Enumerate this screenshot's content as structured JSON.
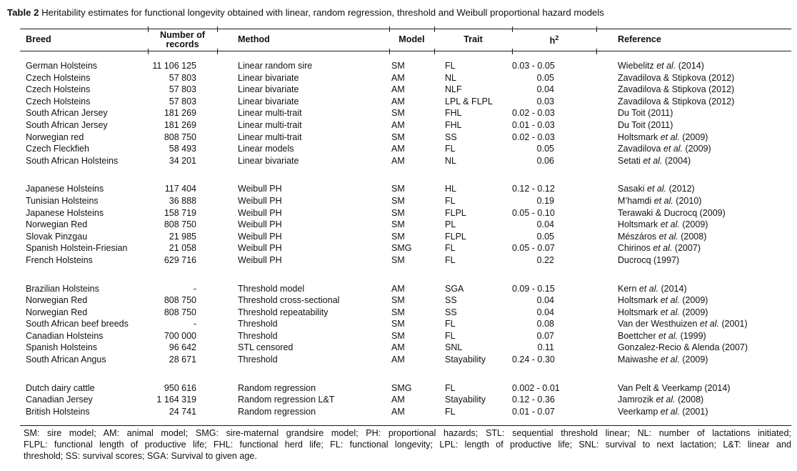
{
  "title": {
    "label": "Table 2",
    "text": " Heritability estimates for functional longevity obtained with linear, random regression, threshold and Weibull proportional hazard models"
  },
  "columns": {
    "breed": "Breed",
    "records": "Number of records",
    "method": "Method",
    "model": "Model",
    "trait": "Trait",
    "h2_base": "h",
    "h2_sup": "2",
    "reference": "Reference"
  },
  "groups": [
    {
      "name": "linear-models",
      "rows": [
        {
          "breed": "German Holsteins",
          "records": "11 106 125",
          "method": "Linear random sire",
          "model": "SM",
          "trait": "FL",
          "h2": "0.03 - 0.05",
          "reference": "Wiebelitz et al. (2014)"
        },
        {
          "breed": "Czech Holsteins",
          "records": "57 803",
          "method": "Linear bivariate",
          "model": "AM",
          "trait": "NL",
          "h2": "0.05",
          "reference": "Zavadilova & Stipkova (2012)"
        },
        {
          "breed": "Czech Holsteins",
          "records": "57 803",
          "method": "Linear bivariate",
          "model": "AM",
          "trait": "NLF",
          "h2": "0.04",
          "reference": "Zavadilova & Stipkova (2012)"
        },
        {
          "breed": "Czech Holsteins",
          "records": "57 803",
          "method": "Linear bivariate",
          "model": "AM",
          "trait": "LPL & FLPL",
          "h2": "0.03",
          "reference": "Zavadilova & Stipkova (2012)"
        },
        {
          "breed": "South African Jersey",
          "records": "181 269",
          "method": "Linear multi-trait",
          "model": "SM",
          "trait": "FHL",
          "h2": "0.02 - 0.03",
          "reference": "Du Toit (2011)"
        },
        {
          "breed": "South African Jersey",
          "records": "181 269",
          "method": "Linear multi-trait",
          "model": "AM",
          "trait": "FHL",
          "h2": "0.01 - 0.03",
          "reference": "Du Toit (2011)"
        },
        {
          "breed": "Norwegian red",
          "records": "808 750",
          "method": "Linear multi-trait",
          "model": "SM",
          "trait": "SS",
          "h2": "0.02 - 0.03",
          "reference": "Holtsmark et al. (2009)"
        },
        {
          "breed": "Czech Fleckfieh",
          "records": "58 493",
          "method": "Linear models",
          "model": "AM",
          "trait": "FL",
          "h2": "0.05",
          "reference": "Zavadilova et al. (2009)"
        },
        {
          "breed": "South African Holsteins",
          "records": "34 201",
          "method": "Linear bivariate",
          "model": "AM",
          "trait": "NL",
          "h2": "0.06",
          "reference": "Setati et al. (2004)"
        }
      ]
    },
    {
      "name": "weibull-ph",
      "rows": [
        {
          "breed": "Japanese Holsteins",
          "records": "117 404",
          "method": "Weibull PH",
          "model": "SM",
          "trait": "HL",
          "h2": "0.12 - 0.12",
          "reference": "Sasaki et al. (2012)"
        },
        {
          "breed": "Tunisian Holsteins",
          "records": "36 888",
          "method": "Weibull PH",
          "model": "SM",
          "trait": "FL",
          "h2": "0.19",
          "reference": "M’hamdi et al. (2010)"
        },
        {
          "breed": "Japanese Holsteins",
          "records": "158 719",
          "method": "Weibull PH",
          "model": "SM",
          "trait": "FLPL",
          "h2": "0.05 - 0.10",
          "reference": "Terawaki & Ducrocq (2009)"
        },
        {
          "breed": "Norwegian Red",
          "records": "808 750",
          "method": "Weibull PH",
          "model": "SM",
          "trait": "PL",
          "h2": "0.04",
          "reference": "Holtsmark et al. (2009)"
        },
        {
          "breed": "Slovak Pinzgau",
          "records": "21 985",
          "method": "Weibull PH",
          "model": "SM",
          "trait": "FLPL",
          "h2": "0.05",
          "reference": "Mészáros et al. (2008)"
        },
        {
          "breed": "Spanish Holstein-Friesian",
          "records": "21 058",
          "method": "Weibull PH",
          "model": "SMG",
          "trait": "FL",
          "h2": "0.05 - 0.07",
          "reference": "Chirinos et al. (2007)"
        },
        {
          "breed": "French Holsteins",
          "records": "629 716",
          "method": "Weibull PH",
          "model": "SM",
          "trait": "FL",
          "h2": "0.22",
          "reference": "Ducrocq (1997)"
        }
      ]
    },
    {
      "name": "threshold",
      "rows": [
        {
          "breed": "Brazilian Holsteins",
          "records": "-",
          "method": "Threshold model",
          "model": "AM",
          "trait": "SGA",
          "h2": "0.09 - 0.15",
          "reference": "Kern et al. (2014)"
        },
        {
          "breed": "Norwegian Red",
          "records": "808 750",
          "method": "Threshold cross-sectional",
          "model": "SM",
          "trait": "SS",
          "h2": "0.04",
          "reference": "Holtsmark et al. (2009)"
        },
        {
          "breed": "Norwegian Red",
          "records": "808 750",
          "method": "Threshold repeatability",
          "model": "SM",
          "trait": "SS",
          "h2": "0.04",
          "reference": "Holtsmark et al. (2009)"
        },
        {
          "breed": "South African beef breeds",
          "records": "-",
          "method": "Threshold",
          "model": "SM",
          "trait": "FL",
          "h2": "0.08",
          "reference": "Van der Westhuizen et al. (2001)"
        },
        {
          "breed": "Canadian Holsteins",
          "records": "700 000",
          "method": "Threshold",
          "model": "SM",
          "trait": "FL",
          "h2": "0.07",
          "reference": "Boettcher et al. (1999)"
        },
        {
          "breed": "Spanish Holsteins",
          "records": "96 642",
          "method": "STL censored",
          "model": "AM",
          "trait": "SNL",
          "h2": "0.11",
          "reference": "Gonzalez-Recio & Alenda (2007)"
        },
        {
          "breed": "South African Angus",
          "records": "28 671",
          "method": "Threshold",
          "model": "AM",
          "trait": "Stayability",
          "h2": "0.24 - 0.30",
          "reference": "Maiwashe et al. (2009)"
        }
      ]
    },
    {
      "name": "random-regression",
      "rows": [
        {
          "breed": "Dutch dairy cattle",
          "records": "950 616",
          "method": "Random regression",
          "model": "SMG",
          "trait": "FL",
          "h2": "0.002 - 0.01",
          "reference": "Van Pelt & Veerkamp (2014)"
        },
        {
          "breed": "Canadian Jersey",
          "records": "1 164 319",
          "method": "Random regression L&T",
          "model": "AM",
          "trait": "Stayability",
          "h2": "0.12 - 0.36",
          "reference": "Jamrozik et al. (2008)"
        },
        {
          "breed": "British Holsteins",
          "records": "24 741",
          "method": "Random regression",
          "model": "AM",
          "trait": "FL",
          "h2": "0.01 - 0.07",
          "reference": "Veerkamp et al. (2001)"
        }
      ]
    }
  ],
  "footnote_lines": [
    "SM: sire model; AM: animal model; SMG: sire-maternal grandsire model; PH: proportional hazards; STL: sequential threshold linear; NL: number of lactations initiated;",
    "FLPL: functional length of productive life; FHL: functional herd life; FL: functional longevity; LPL: length of productive life; SNL: survival to next lactation; L&T: linear and",
    "threshold; SS: survival scores; SGA: Survival to given age."
  ],
  "colors": {
    "background": "#ffffff",
    "text": "#111111",
    "rule": "#1a1a1a"
  }
}
